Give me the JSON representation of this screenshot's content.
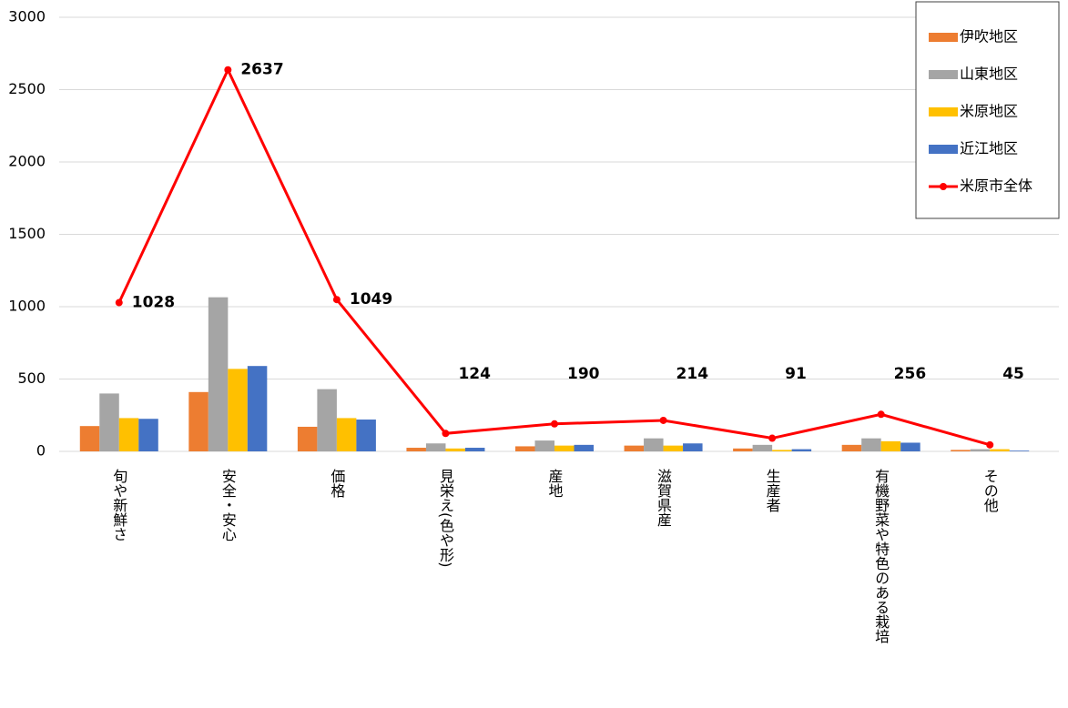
{
  "chart_data": {
    "type": "bar",
    "categories": [
      "旬や新鮮さ",
      "安全・安心",
      "価格",
      "見栄え(色や形)",
      "産地",
      "滋賀県産",
      "生産者",
      "有機野菜や特色のある栽培",
      "その他"
    ],
    "series": [
      {
        "name": "伊吹地区",
        "type": "bar",
        "color": "#ed7d31",
        "values": [
          175,
          410,
          170,
          25,
          35,
          40,
          20,
          45,
          10
        ]
      },
      {
        "name": "山東地区",
        "type": "bar",
        "color": "#a5a5a5",
        "values": [
          400,
          1065,
          430,
          55,
          75,
          90,
          45,
          90,
          15
        ]
      },
      {
        "name": "米原地区",
        "type": "bar",
        "color": "#ffc000",
        "values": [
          230,
          570,
          230,
          20,
          40,
          40,
          10,
          70,
          15
        ]
      },
      {
        "name": "近江地区",
        "type": "bar",
        "color": "#4472c4",
        "values": [
          225,
          590,
          220,
          25,
          45,
          55,
          15,
          60,
          5
        ]
      },
      {
        "name": "米原市全体",
        "type": "line",
        "color": "#ff0000",
        "values": [
          1028,
          2637,
          1049,
          124,
          190,
          214,
          91,
          256,
          45
        ]
      }
    ],
    "ylim": [
      0,
      3000
    ],
    "yticks": [
      0,
      500,
      1000,
      1500,
      2000,
      2500,
      3000
    ],
    "grid": true,
    "legend": "top-right"
  }
}
